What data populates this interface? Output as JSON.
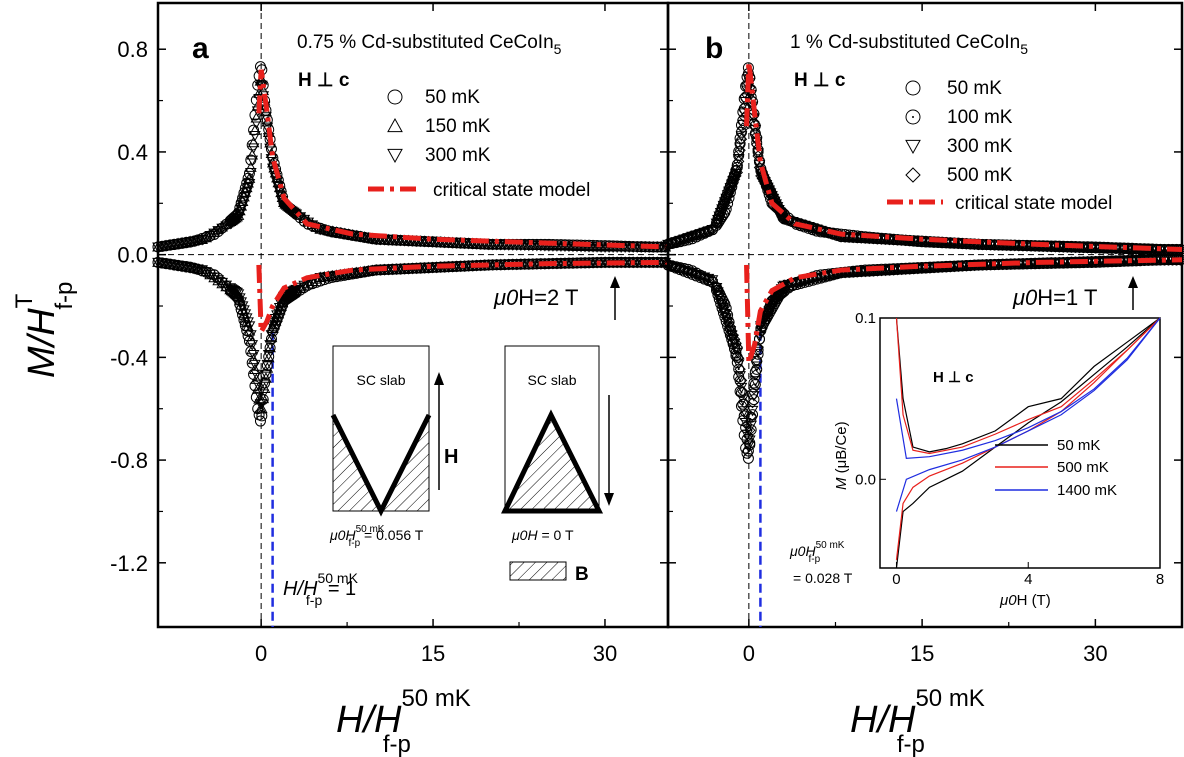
{
  "chart_data": [
    {
      "panel": "a",
      "type": "scatter",
      "title": "0.75 % Cd-substituted CeCoIn",
      "title_sub": "5",
      "orientation": "H ⊥ c",
      "xlabel": "H/H",
      "xlabel_sup": "50 mK",
      "xlabel_sub": "f-p",
      "ylabel": "M/H",
      "ylabel_sup": "T",
      "ylabel_sub": "f-p",
      "xlim": [
        -9,
        35.5
      ],
      "ylim": [
        -1.45,
        0.98
      ],
      "xticks": [
        "0",
        "15",
        "30"
      ],
      "yticks": [
        "0.8",
        "0.4",
        "0.0",
        "-0.4",
        "-0.8",
        "-1.2"
      ],
      "series": [
        {
          "name": "50 mK",
          "marker": "circle",
          "x": [
            -9,
            -6,
            -4,
            -2,
            -1,
            -0.3,
            0,
            0.3,
            1,
            2,
            4,
            6,
            10,
            15,
            20,
            25,
            30,
            34
          ],
          "y_up": [
            0.03,
            0.05,
            0.08,
            0.16,
            0.32,
            0.66,
            0.75,
            0.6,
            0.38,
            0.2,
            0.12,
            0.09,
            0.06,
            0.05,
            0.04,
            0.04,
            0.035,
            0.03
          ],
          "y_down": [
            -0.03,
            -0.05,
            -0.08,
            -0.17,
            -0.34,
            -0.6,
            -0.66,
            -0.5,
            -0.3,
            -0.18,
            -0.12,
            -0.09,
            -0.06,
            -0.05,
            -0.04,
            -0.035,
            -0.03,
            -0.03
          ]
        },
        {
          "name": "150 mK",
          "marker": "triangle-up",
          "x": [
            -9,
            -5,
            -2,
            -1,
            0,
            1,
            2,
            5,
            10,
            20,
            30
          ],
          "y_up": [
            0.03,
            0.06,
            0.15,
            0.3,
            0.7,
            0.36,
            0.2,
            0.1,
            0.06,
            0.04,
            0.03
          ],
          "y_down": [
            -0.03,
            -0.06,
            -0.16,
            -0.3,
            -0.62,
            -0.29,
            -0.17,
            -0.09,
            -0.06,
            -0.04,
            -0.03
          ]
        },
        {
          "name": "300 mK",
          "marker": "triangle-down",
          "x": [
            -9,
            -5,
            -2,
            -1,
            0,
            1,
            2,
            5,
            10,
            20,
            30
          ],
          "y_up": [
            0.03,
            0.06,
            0.14,
            0.28,
            0.68,
            0.34,
            0.19,
            0.1,
            0.06,
            0.04,
            0.03
          ],
          "y_down": [
            -0.03,
            -0.06,
            -0.15,
            -0.28,
            -0.6,
            -0.28,
            -0.16,
            -0.09,
            -0.06,
            -0.04,
            -0.03
          ]
        },
        {
          "name": "critical state model",
          "style": "dash-dot",
          "color": "#e8201c",
          "x": [
            -0.2,
            0,
            0.5,
            1,
            2,
            4,
            8,
            15,
            25,
            35.5
          ],
          "y_up": [
            0.55,
            0.72,
            0.56,
            0.38,
            0.22,
            0.12,
            0.08,
            0.06,
            0.045,
            0.03
          ],
          "y_down": [
            -0.04,
            -0.3,
            -0.26,
            -0.2,
            -0.13,
            -0.09,
            -0.06,
            -0.045,
            -0.035,
            -0.03
          ]
        }
      ],
      "annotation_field": "μ0H=2 T",
      "annotation_hfp": "H/H",
      "annotation_hfp_sup": "50 mK",
      "annotation_hfp_sub": "f-p",
      "annotation_hfp_value": "= 1",
      "legend_position": "top-right",
      "schematic": {
        "left_title": "SC slab",
        "left_arrow_label": "H",
        "left_caption_main": "μ0H",
        "left_caption_sup": "50 mK",
        "left_caption_sub": "f-p",
        "left_caption_value": "= 0.056 T",
        "right_title": "SC slab",
        "right_caption": "μ0H = 0 T",
        "legend_label": "B"
      }
    },
    {
      "panel": "b",
      "type": "scatter",
      "title": "1 % Cd-substituted  CeCoIn",
      "title_sub": "5",
      "orientation": "H ⊥ c",
      "xlabel": "H/H",
      "xlabel_sup": "50 mK",
      "xlabel_sub": "f-p",
      "xlim": [
        -7,
        37.5
      ],
      "ylim": [
        -1.45,
        0.98
      ],
      "xticks": [
        "0",
        "15",
        "30"
      ],
      "series": [
        {
          "name": "50 mK",
          "marker": "circle",
          "x": [
            -7,
            -5,
            -3,
            -2,
            -1,
            -0.3,
            0,
            0.3,
            1,
            2,
            4,
            6,
            10,
            15,
            20,
            25,
            30,
            36
          ],
          "y_up": [
            0.04,
            0.06,
            0.1,
            0.17,
            0.35,
            0.65,
            0.74,
            0.55,
            0.34,
            0.2,
            0.12,
            0.09,
            0.07,
            0.05,
            0.04,
            0.035,
            0.03,
            0.02
          ],
          "y_down": [
            -0.04,
            -0.06,
            -0.11,
            -0.2,
            -0.42,
            -0.75,
            -0.8,
            -0.55,
            -0.3,
            -0.18,
            -0.11,
            -0.08,
            -0.06,
            -0.05,
            -0.04,
            -0.035,
            -0.03,
            -0.02
          ]
        },
        {
          "name": "100 mK",
          "marker": "circle-dot",
          "x": [
            -7,
            -3,
            -1,
            0,
            1,
            3,
            8,
            20,
            35
          ],
          "y_up": [
            0.04,
            0.1,
            0.34,
            0.72,
            0.33,
            0.14,
            0.07,
            0.04,
            0.02
          ],
          "y_down": [
            -0.04,
            -0.11,
            -0.4,
            -0.78,
            -0.29,
            -0.13,
            -0.07,
            -0.04,
            -0.02
          ]
        },
        {
          "name": "300 mK",
          "marker": "triangle-down",
          "x": [
            -7,
            -3,
            -1,
            0,
            1,
            3,
            8,
            20,
            35
          ],
          "y_up": [
            0.04,
            0.1,
            0.33,
            0.7,
            0.32,
            0.14,
            0.07,
            0.04,
            0.02
          ],
          "y_down": [
            -0.04,
            -0.1,
            -0.38,
            -0.76,
            -0.28,
            -0.12,
            -0.07,
            -0.04,
            -0.02
          ]
        },
        {
          "name": "500 mK",
          "marker": "diamond",
          "x": [
            -7,
            -3,
            -1,
            0,
            1,
            3,
            8,
            20,
            35
          ],
          "y_up": [
            0.04,
            0.1,
            0.32,
            0.68,
            0.31,
            0.14,
            0.07,
            0.04,
            0.02
          ],
          "y_down": [
            -0.04,
            -0.1,
            -0.36,
            -0.72,
            -0.27,
            -0.12,
            -0.07,
            -0.04,
            -0.02
          ]
        },
        {
          "name": "critical state model",
          "style": "dash-dot",
          "color": "#e8201c",
          "x": [
            -0.2,
            0,
            0.5,
            1,
            2,
            4,
            8,
            15,
            25,
            37.5
          ],
          "y_up": [
            0.5,
            0.75,
            0.55,
            0.36,
            0.2,
            0.12,
            0.08,
            0.06,
            0.04,
            0.02
          ],
          "y_down": [
            -0.04,
            -0.42,
            -0.35,
            -0.22,
            -0.14,
            -0.09,
            -0.06,
            -0.045,
            -0.03,
            -0.02
          ]
        }
      ],
      "annotation_field": "μ0H=1 T",
      "annotation_hfp_main": "μ0H",
      "annotation_hfp_sup": "50 mK",
      "annotation_hfp_sub": "f-p",
      "annotation_hfp_value": "= 0.028 T",
      "legend_position": "top-right",
      "inset": {
        "type": "line",
        "orientation": "H ⊥ c",
        "xlabel": "μ0H (T)",
        "ylabel": "M (μB/Ce)",
        "xlim": [
          -0.5,
          8
        ],
        "ylim": [
          -0.055,
          0.1
        ],
        "xticks": [
          "0",
          "4",
          "8"
        ],
        "yticks": [
          "0.1",
          "0.0"
        ],
        "series": [
          {
            "name": "50 mK",
            "color": "#000000",
            "x": [
              0,
              0.2,
              0.5,
              1,
              1.5,
              2,
              3,
              4,
              5,
              6,
              7,
              8
            ],
            "y_up": [
              0.1,
              0.05,
              0.02,
              0.017,
              0.019,
              0.022,
              0.03,
              0.045,
              0.05,
              0.07,
              0.085,
              0.1
            ],
            "y_down": [
              -0.055,
              -0.02,
              -0.015,
              -0.005,
              0.0,
              0.005,
              0.02,
              0.035,
              0.048,
              0.065,
              0.082,
              0.1
            ]
          },
          {
            "name": "500 mK",
            "color": "#e8201c",
            "x": [
              0,
              0.2,
              0.5,
              1,
              2,
              3,
              4,
              5,
              6,
              7,
              8
            ],
            "y_up": [
              0.1,
              0.04,
              0.018,
              0.016,
              0.02,
              0.028,
              0.037,
              0.045,
              0.062,
              0.08,
              0.1
            ],
            "y_down": [
              -0.05,
              -0.015,
              -0.005,
              0.002,
              0.01,
              0.02,
              0.03,
              0.042,
              0.06,
              0.08,
              0.1
            ]
          },
          {
            "name": "1400 mK",
            "color": "#1f2de0",
            "x": [
              0,
              0.3,
              1,
              2,
              3,
              4,
              5,
              6,
              7,
              8
            ],
            "y_up": [
              0.05,
              0.013,
              0.014,
              0.018,
              0.024,
              0.032,
              0.042,
              0.056,
              0.075,
              0.1
            ],
            "y_down": [
              -0.02,
              0.0,
              0.006,
              0.012,
              0.02,
              0.03,
              0.04,
              0.055,
              0.074,
              0.1
            ]
          }
        ]
      }
    }
  ]
}
